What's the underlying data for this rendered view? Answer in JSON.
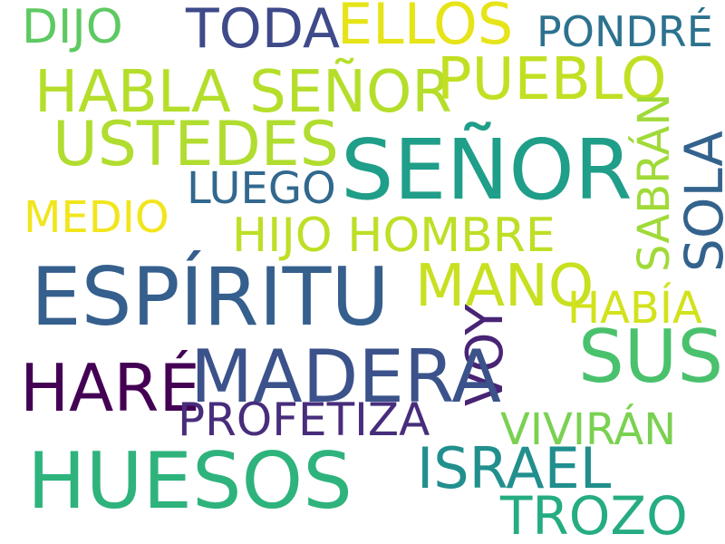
{
  "words": {
    "dijo": {
      "text": "DIJO",
      "color": "#5ec962"
    },
    "toda": {
      "text": "TODA",
      "color": "#3e4a89"
    },
    "ellos": {
      "text": "ELLOS",
      "color": "#e6e419"
    },
    "pondre": {
      "text": "PONDRÉ",
      "color": "#2c728e"
    },
    "habla_senor": {
      "text": "HABLA SEÑOR",
      "color": "#b5de2b"
    },
    "pueblo": {
      "text": "PUEBLO",
      "color": "#c2df23"
    },
    "ustedes": {
      "text": "USTEDES",
      "color": "#b0dd2f"
    },
    "senor": {
      "text": "SEÑOR",
      "color": "#1f9e89"
    },
    "sabran": {
      "text": "SABRÁN",
      "color": "#a0da39"
    },
    "sola": {
      "text": "SOLA",
      "color": "#33638d"
    },
    "luego": {
      "text": "LUEGO",
      "color": "#31688e"
    },
    "medio": {
      "text": "MEDIO",
      "color": "#f1e51d"
    },
    "hijo_hombre": {
      "text": "HIJO HOMBRE",
      "color": "#bddf26"
    },
    "espiritu": {
      "text": "ESPÍRITU",
      "color": "#355f8d"
    },
    "mano": {
      "text": "MANO",
      "color": "#c8e020"
    },
    "habia": {
      "text": "HABÍA",
      "color": "#d2e21b"
    },
    "voy": {
      "text": "VOY",
      "color": "#482475"
    },
    "sus": {
      "text": "SUS",
      "color": "#4ac16d"
    },
    "hare": {
      "text": "HARÉ",
      "color": "#440154"
    },
    "madera": {
      "text": "MADERA",
      "color": "#3b528b"
    },
    "profetiza": {
      "text": "PROFETIZA",
      "color": "#472d7b"
    },
    "viviran": {
      "text": "VIVIRÁN",
      "color": "#7ad151"
    },
    "huesos": {
      "text": "HUESOS",
      "color": "#2eb37c"
    },
    "israel": {
      "text": "ISRAEL",
      "color": "#218f8d"
    },
    "trozo": {
      "text": "TROZO",
      "color": "#25ac82"
    }
  }
}
